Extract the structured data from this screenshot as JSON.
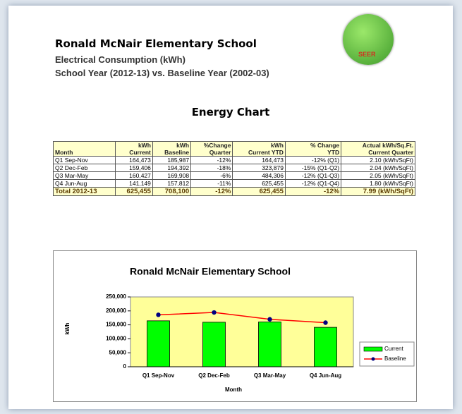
{
  "header": {
    "title": "Ronald McNair Elementary School",
    "subtitle": "Electrical Consumption (kWh)",
    "comparison": "School Year (2012-13)  vs. Baseline Year (2002-03)"
  },
  "logo": "SEER",
  "section_title": "Energy Chart",
  "table": {
    "columns": [
      [
        "Month"
      ],
      [
        "kWh",
        "Current"
      ],
      [
        "kWh",
        "Baseline"
      ],
      [
        "%Change",
        "Quarter"
      ],
      [
        "kWh",
        "Current YTD"
      ],
      [
        "% Change",
        "YTD"
      ],
      [
        "Actual kWh/Sq.Ft.",
        "Current Quarter"
      ]
    ],
    "rows": [
      [
        "Q1 Sep-Nov",
        "164,473",
        "185,987",
        "-12%",
        "164,473",
        "-12% (Q1)",
        "2.10 (kWh/SqFt)"
      ],
      [
        "Q2 Dec-Feb",
        "159,406",
        "194,392",
        "-18%",
        "323,879",
        "-15% (Q1-Q2)",
        "2.04 (kWh/SqFt)"
      ],
      [
        "Q3 Mar-May",
        "160,427",
        "169,908",
        "-6%",
        "484,306",
        "-12% (Q1-Q3)",
        "2.05 (kWh/SqFt)"
      ],
      [
        "Q4 Jun-Aug",
        "141,149",
        "157,812",
        "-11%",
        "625,455",
        "-12% (Q1-Q4)",
        "1.80 (kWh/SqFt)"
      ]
    ],
    "total": [
      "Total 2012-13",
      "625,455",
      "708,100",
      "-12%",
      "625,455",
      "-12%",
      "7.99 (kWh/SqFt)"
    ]
  },
  "chart_data": {
    "type": "bar",
    "title": "Ronald McNair Elementary School",
    "xlabel": "Month",
    "ylabel": "kWh",
    "categories": [
      "Q1 Sep-Nov",
      "Q2 Dec-Feb",
      "Q3 Mar-May",
      "Q4 Jun-Aug"
    ],
    "series": [
      {
        "name": "Current",
        "type": "bar",
        "color": "#00ff00",
        "values": [
          164473,
          159406,
          160427,
          141149
        ]
      },
      {
        "name": "Baseline",
        "type": "line",
        "color": "#ff0000",
        "marker_color": "#000080",
        "values": [
          185987,
          194392,
          169908,
          157812
        ]
      }
    ],
    "ylim": [
      0,
      250000
    ],
    "yticks": [
      0,
      {
        "value": 50000,
        "label": "50,000"
      },
      {
        "value": 100000,
        "label": "100,000"
      },
      {
        "value": 150000,
        "label": "150,000"
      },
      {
        "value": 200000,
        "label": "200,000"
      },
      {
        "value": 250000,
        "label": "250,000"
      }
    ],
    "legend": "right"
  }
}
